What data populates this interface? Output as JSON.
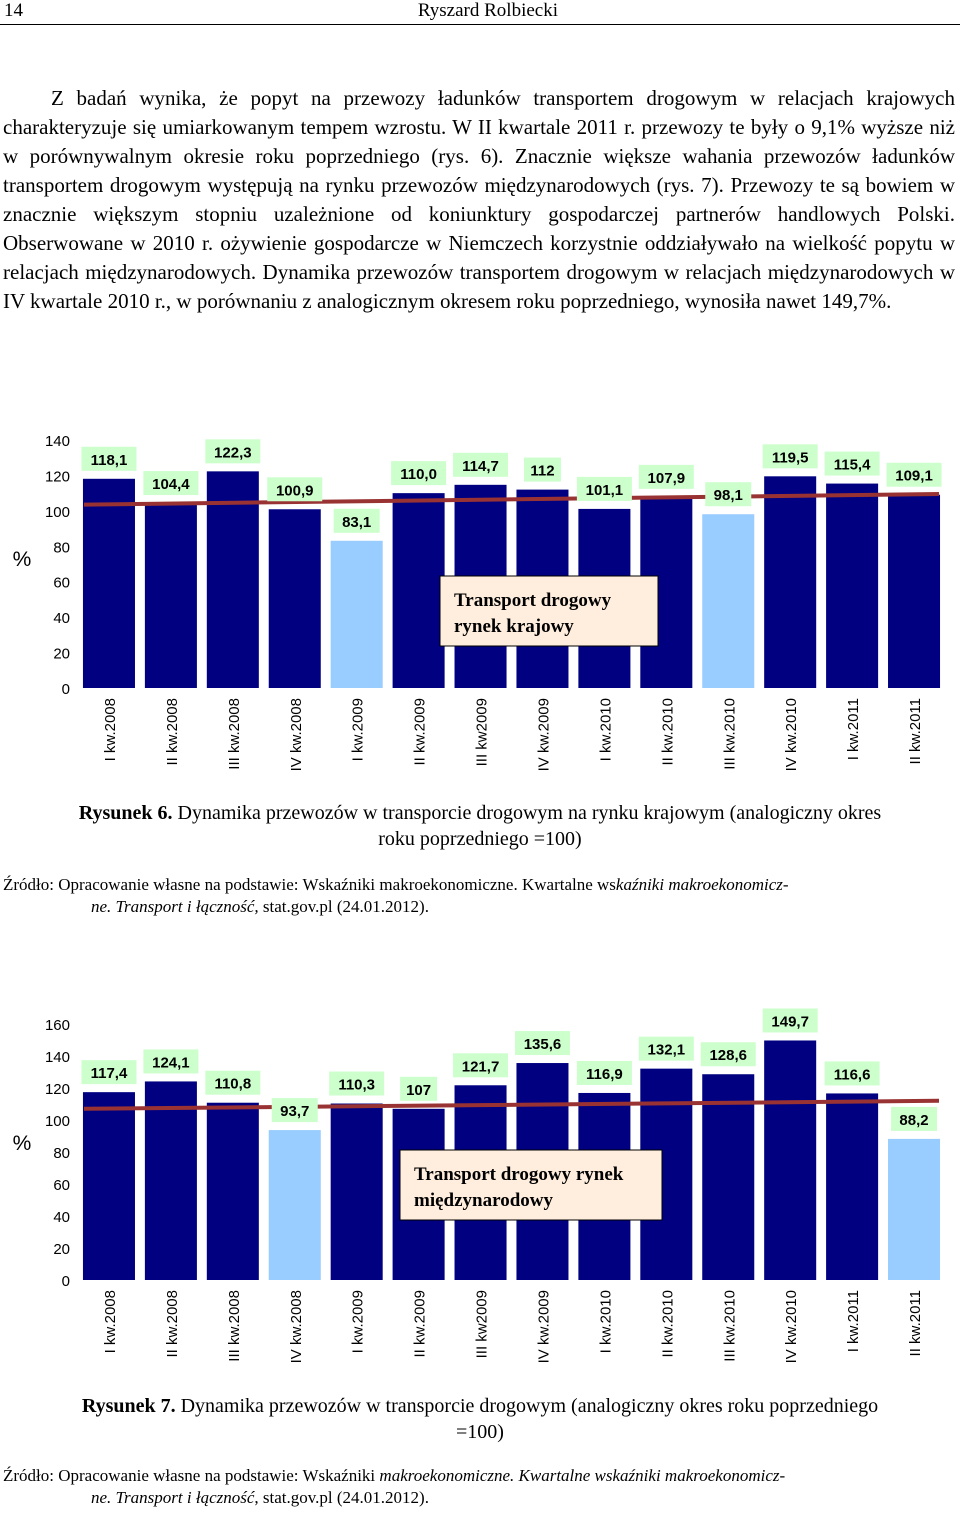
{
  "header": {
    "page_number": "14",
    "author": "Ryszard Rolbiecki"
  },
  "paragraph": "Z badań wynika, że popyt na przewozy ładunków transportem drogowym w relacjach krajowych charakteryzuje się umiarkowanym tempem wzrostu. W II kwartale 2011 r. przewozy te były o 9,1% wyższe niż w porównywalnym okresie roku poprzedniego (rys. 6). Znacznie większe wahania przewozów ładunków transportem drogowym występują na rynku przewozów międzynarodowych (rys. 7). Przewozy te są bowiem w znacznie większym stopniu uzależnione od koniunktury gospodarczej partnerów handlowych Polski. Obserwowane w 2010 r. ożywienie gospodarcze w Niemczech korzystnie oddziaływało na wielkość popytu w relacjach międzynarodowych. Dynamika przewozów transportem drogowym w relacjach międzynarodowych w IV kwartale 2010 r., w porównaniu z analogicznym okresem roku poprzedniego, wynosiła nawet 149,7%.",
  "figure6": {
    "caption_label": "Rysunek 6.",
    "caption_line1": "Dynamika przewozów w transporcie drogowym  na rynku krajowym (analogiczny okres",
    "caption_line2": "roku poprzedniego =100)",
    "source_a": "Źródło: Opracowanie własne na podstawie: Wskaźniki ",
    "source_b": "makroekonomiczne. Kwartalne ws",
    "source_c": "kaźniki makroekonomicz-",
    "source_d": "ne. Transport i łączność,",
    "source_e": "  stat.gov.pl (24.01.2012)."
  },
  "figure7": {
    "caption_label": "Rysunek 7.",
    "caption_line1": "Dynamika przewozów w transporcie drogowym (analogiczny okres roku poprzedniego",
    "caption_line2": "=100)",
    "source_a": "Źródło: Opracowanie własne na podstawie: Wskaźniki ",
    "source_b": "makroekonomiczne. Kwartalne wskaźniki makroekonomicz-",
    "source_d": "ne. Transport i łączność",
    "source_e": ",  stat.gov.pl (24.01.2012)."
  },
  "chart_data": [
    {
      "type": "bar",
      "title": "",
      "ylabel": "%",
      "annotation": [
        "Transport  drogowy",
        "rynek krajowy"
      ],
      "ylim": [
        0,
        140
      ],
      "yticks": [
        0,
        20,
        40,
        60,
        80,
        100,
        120,
        140
      ],
      "categories": [
        "I kw.2008",
        "II kw.2008",
        "III kw.2008",
        "IV kw.2008",
        "I kw.2009",
        "II kw.2009",
        "III kw2009",
        "IV kw.2009",
        "I kw.2010",
        "II kw.2010",
        "III kw.2010",
        "IV kw.2010",
        "I kw.2011",
        "II kw.2011"
      ],
      "values": [
        118.1,
        104.4,
        122.3,
        100.9,
        83.1,
        110.0,
        114.7,
        112,
        101.1,
        107.9,
        98.1,
        119.5,
        115.4,
        109.1
      ],
      "value_labels": [
        "118,1",
        "104,4",
        "122,3",
        "100,9",
        "83,1",
        "110,0",
        "114,7",
        "112",
        "101,1",
        "107,9",
        "98,1",
        "119,5",
        "115,4",
        "109,1"
      ],
      "highlight_below_100": true,
      "trendline": [
        103.5,
        109.5
      ],
      "colors": {
        "bar": "#000080",
        "bar_below_100": "#99ccff",
        "trend": "#993333",
        "label_bg": "#ccffcc",
        "annotation_bg": "#ffeedd"
      }
    },
    {
      "type": "bar",
      "title": "",
      "ylabel": "%",
      "annotation": [
        "Transport drogowy rynek",
        "międzynarodowy"
      ],
      "ylim": [
        0,
        160
      ],
      "yticks": [
        0,
        20,
        40,
        60,
        80,
        100,
        120,
        140,
        160
      ],
      "categories": [
        "I kw.2008",
        "II kw.2008",
        "III kw.2008",
        "IV kw.2008",
        "I kw.2009",
        "II kw.2009",
        "III kw2009",
        "IV kw.2009",
        "I kw.2010",
        "II kw.2010",
        "III kw.2010",
        "IV kw.2010",
        "I kw.2011",
        "II kw.2011"
      ],
      "values": [
        117.4,
        124.1,
        110.8,
        93.7,
        110.3,
        107,
        121.7,
        135.6,
        116.9,
        132.1,
        128.6,
        149.7,
        116.6,
        88.2
      ],
      "value_labels": [
        "117,4",
        "124,1",
        "110,8",
        "93,7",
        "110,3",
        "107",
        "121,7",
        "135,6",
        "116,9",
        "132,1",
        "128,6",
        "149,7",
        "116,6",
        "88,2"
      ],
      "highlight_below_100": true,
      "trendline": [
        107,
        112
      ],
      "colors": {
        "bar": "#000080",
        "bar_below_100": "#99ccff",
        "trend": "#993333",
        "label_bg": "#ccffcc",
        "annotation_bg": "#ffeedd"
      }
    }
  ]
}
